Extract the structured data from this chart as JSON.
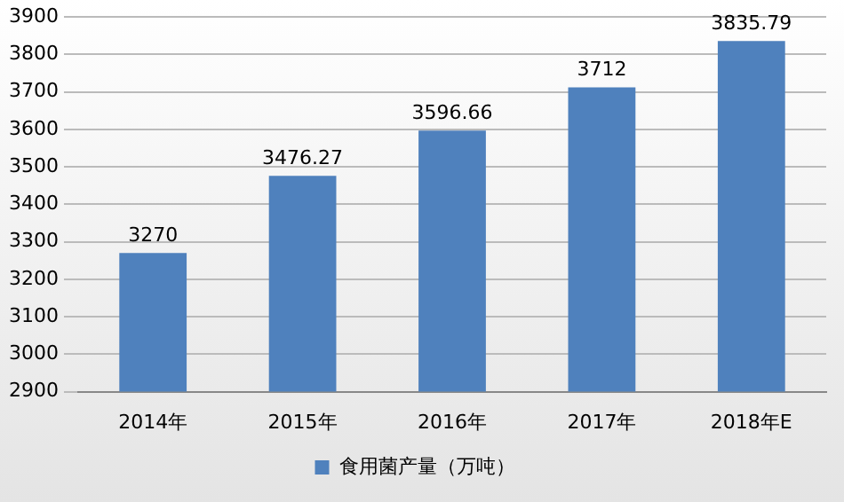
{
  "chart_data": {
    "type": "bar",
    "categories": [
      "2014年",
      "2015年",
      "2016年",
      "2017年",
      "2018年E"
    ],
    "series": [
      {
        "name": "食用菌产量（万吨）",
        "color": "#4f81bd",
        "values": [
          3270,
          3476.27,
          3596.66,
          3712,
          3835.79
        ]
      }
    ],
    "ylim": [
      2900,
      3900
    ],
    "yticks": [
      2900,
      3000,
      3100,
      3200,
      3300,
      3400,
      3500,
      3600,
      3700,
      3800,
      3900
    ],
    "grid": "y",
    "legend": "bottom",
    "data_labels": true
  }
}
